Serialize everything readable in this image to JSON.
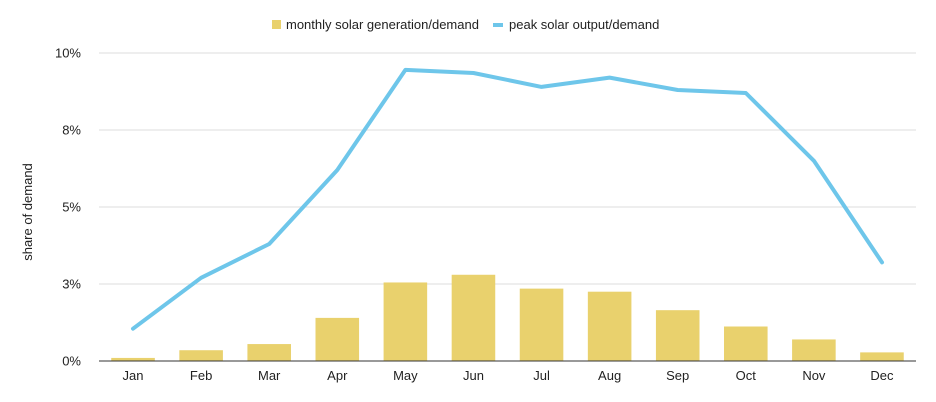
{
  "chart_data": {
    "type": "bar",
    "categories": [
      "Jan",
      "Feb",
      "Mar",
      "Apr",
      "May",
      "Jun",
      "Jul",
      "Aug",
      "Sep",
      "Oct",
      "Nov",
      "Dec"
    ],
    "series": [
      {
        "name": "monthly solar generation/demand",
        "type": "bar",
        "color": "#e9d16d",
        "values": [
          0.1,
          0.35,
          0.55,
          1.4,
          2.55,
          2.8,
          2.35,
          2.25,
          1.65,
          1.12,
          0.7,
          0.28
        ]
      },
      {
        "name": "peak solar output/demand",
        "type": "line",
        "color": "#6ec6ea",
        "values": [
          1.05,
          2.7,
          3.8,
          6.2,
          9.45,
          9.35,
          8.9,
          9.2,
          8.8,
          8.7,
          6.5,
          3.2
        ]
      }
    ],
    "title": "",
    "xlabel": "",
    "ylabel": "share of demand",
    "ylim": [
      0,
      10
    ],
    "yticks": [
      0,
      2.5,
      5,
      7.5,
      10
    ],
    "ytick_labels": [
      "0%",
      "3%",
      "5%",
      "8%",
      "10%"
    ],
    "grid": true,
    "legend_position": "top-center"
  }
}
